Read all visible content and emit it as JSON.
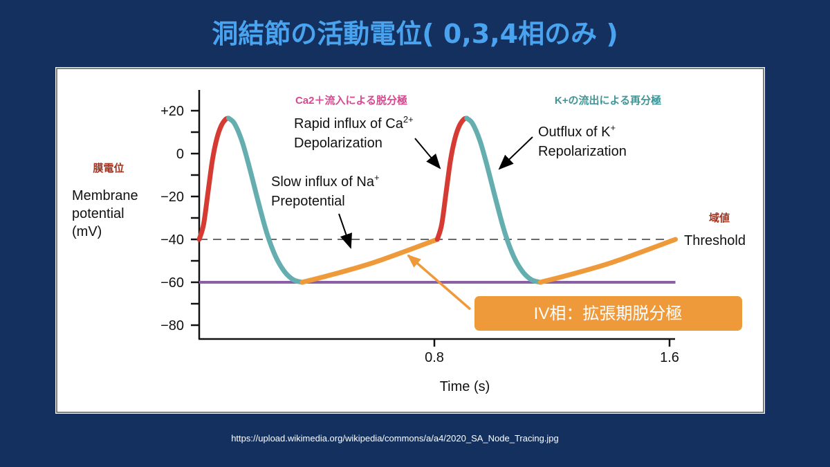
{
  "slide": {
    "title": "洞結節の活動電位( 0,3,4相のみ )",
    "source_url": "https://upload.wikimedia.org/wikipedia/commons/a/a4/2020_SA_Node_Tracing.jpg"
  },
  "colors": {
    "background": "#14305e",
    "title": "#4aa3ef",
    "depolarization": "#d63b33",
    "repolarization": "#64aeb0",
    "prepotential": "#ee9a3a",
    "resting_line": "#8a5fa6",
    "jp_depol_label": "#d9478f",
    "jp_repol_label": "#3f9597",
    "jp_axis_label": "#a3321f"
  },
  "chart_data": {
    "type": "line",
    "xlabel": "Time (s)",
    "ylabel_lines": [
      "Membrane",
      "potential",
      "(mV)"
    ],
    "ylabel_jp": "膜電位",
    "xlim": [
      0,
      1.6
    ],
    "ylim": [
      -90,
      28
    ],
    "x_ticks": [
      {
        "value": 0.8,
        "label": "0.8"
      },
      {
        "value": 1.6,
        "label": "1.6"
      }
    ],
    "y_ticks": [
      {
        "value": 20,
        "label": "+20"
      },
      {
        "value": 0,
        "label": "0"
      },
      {
        "value": -20,
        "label": "−20"
      },
      {
        "value": -40,
        "label": "−40"
      },
      {
        "value": -60,
        "label": "−60"
      },
      {
        "value": -80,
        "label": "−80"
      }
    ],
    "y_minor_ticks": [
      10,
      -10,
      -30,
      -50,
      -70
    ],
    "threshold": {
      "value": -40,
      "label": "Threshold",
      "label_jp": "域値"
    },
    "resting_level": -60,
    "segments": [
      {
        "phase": "depolarization",
        "points": [
          [
            0,
            -40
          ],
          [
            0.015,
            -33
          ],
          [
            0.03,
            -18
          ],
          [
            0.045,
            -3
          ],
          [
            0.06,
            7
          ],
          [
            0.075,
            13
          ],
          [
            0.09,
            16
          ],
          [
            0.1,
            16.5
          ]
        ]
      },
      {
        "phase": "repolarization",
        "points": [
          [
            0.1,
            16.5
          ],
          [
            0.12,
            14
          ],
          [
            0.145,
            6
          ],
          [
            0.17,
            -6
          ],
          [
            0.2,
            -22
          ],
          [
            0.23,
            -37
          ],
          [
            0.26,
            -48
          ],
          [
            0.29,
            -55
          ],
          [
            0.32,
            -58.8
          ],
          [
            0.35,
            -60
          ]
        ]
      },
      {
        "phase": "prepotential",
        "points": [
          [
            0.35,
            -60
          ],
          [
            0.45,
            -56.5
          ],
          [
            0.6,
            -50.5
          ],
          [
            0.81,
            -40
          ]
        ]
      },
      {
        "phase": "depolarization",
        "points": [
          [
            0.81,
            -40
          ],
          [
            0.825,
            -33
          ],
          [
            0.84,
            -18
          ],
          [
            0.855,
            -3
          ],
          [
            0.87,
            7
          ],
          [
            0.885,
            13
          ],
          [
            0.9,
            16
          ],
          [
            0.91,
            16.5
          ]
        ]
      },
      {
        "phase": "repolarization",
        "points": [
          [
            0.91,
            16.5
          ],
          [
            0.93,
            14
          ],
          [
            0.955,
            6
          ],
          [
            0.98,
            -6
          ],
          [
            1.01,
            -22
          ],
          [
            1.04,
            -37
          ],
          [
            1.07,
            -48
          ],
          [
            1.1,
            -55
          ],
          [
            1.13,
            -58.8
          ],
          [
            1.16,
            -60
          ]
        ]
      },
      {
        "phase": "prepotential",
        "points": [
          [
            1.16,
            -60
          ],
          [
            1.26,
            -56.5
          ],
          [
            1.41,
            -50.5
          ],
          [
            1.62,
            -40
          ]
        ]
      }
    ],
    "annotations": {
      "depol_jp": "Ca2＋流入による脱分極",
      "repol_jp": "K+の流出による再分極",
      "depol_line1": "Rapid influx of Ca",
      "depol_sup": "2+",
      "depol_line2": "Depolarization",
      "repol_line1": "Outflux of K",
      "repol_sup": "+",
      "repol_line2": "Repolarization",
      "pre_line1": "Slow influx of Na",
      "pre_sup": "+",
      "pre_line2": "Prepotential",
      "phase4_box": "IV相：拡張期脱分極"
    }
  }
}
